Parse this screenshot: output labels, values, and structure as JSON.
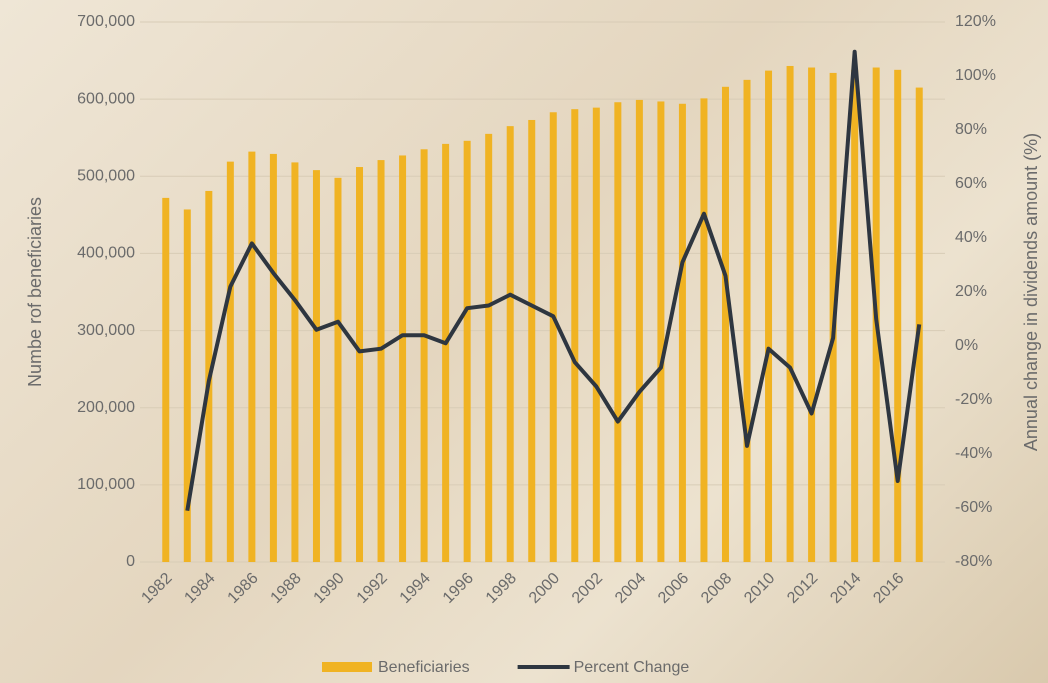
{
  "chart_data": {
    "type": "bar_line",
    "y_label": "Numbe rof beneficiaries",
    "y2_label": "Annual change in dividends amount (%)",
    "categories": [
      "1982",
      null,
      "1984",
      null,
      "1986",
      null,
      "1988",
      null,
      "1990",
      null,
      "1992",
      null,
      "1994",
      null,
      "1996",
      null,
      "1998",
      null,
      "2000",
      null,
      "2002",
      null,
      "2004",
      null,
      "2006",
      null,
      "2008",
      null,
      "2010",
      null,
      "2012",
      null,
      "2014",
      null,
      "2016",
      null
    ],
    "series": [
      {
        "name": "Beneficiaries",
        "color": "#f0b323",
        "type": "bar",
        "values": [
          472000,
          457000,
          481000,
          519000,
          532000,
          529000,
          518000,
          508000,
          498000,
          512000,
          521000,
          527000,
          535000,
          542000,
          546000,
          555000,
          565000,
          573000,
          583000,
          587000,
          589000,
          596000,
          599000,
          597000,
          594000,
          601000,
          616000,
          625000,
          637000,
          643000,
          641000,
          634000,
          638000,
          641000,
          638000,
          615000
        ]
      },
      {
        "name": "Percent Change",
        "color": "#2e3640",
        "type": "line",
        "axis": "y2",
        "values": [
          null,
          -61,
          -13,
          22,
          38,
          27,
          17,
          6,
          9,
          -2,
          -1,
          4,
          4,
          1,
          14,
          15,
          19,
          15,
          11,
          -6,
          -15,
          -28,
          -17,
          -8,
          31,
          49,
          26,
          -37,
          -1,
          -8,
          -25,
          3,
          109,
          10,
          -50,
          8
        ]
      }
    ],
    "ylim": [
      0,
      700000
    ],
    "yticks": [
      0,
      {
        "value": 100000,
        "label": "100,000"
      },
      {
        "value": 200000,
        "label": "200,000"
      },
      {
        "value": 300000,
        "label": "300,000"
      },
      {
        "value": 400000,
        "label": "400,000"
      },
      {
        "value": 500000,
        "label": "500,000"
      },
      {
        "value": 600000,
        "label": "600,000"
      },
      {
        "value": 700000,
        "label": "700,000"
      }
    ],
    "y2lim": [
      -80,
      120
    ],
    "y2ticks": [
      {
        "value": -80,
        "label": "-80%"
      },
      {
        "value": -60,
        "label": "-60%"
      },
      {
        "value": -40,
        "label": "-40%"
      },
      {
        "value": -20,
        "label": "-20%"
      },
      {
        "value": 0,
        "label": "0%"
      },
      {
        "value": 20,
        "label": "20%"
      },
      {
        "value": 40,
        "label": "40%"
      },
      {
        "value": 60,
        "label": "60%"
      },
      {
        "value": 80,
        "label": "80%"
      },
      {
        "value": 100,
        "label": "100%"
      },
      {
        "value": 120,
        "label": "120%"
      }
    ],
    "grid": true
  }
}
